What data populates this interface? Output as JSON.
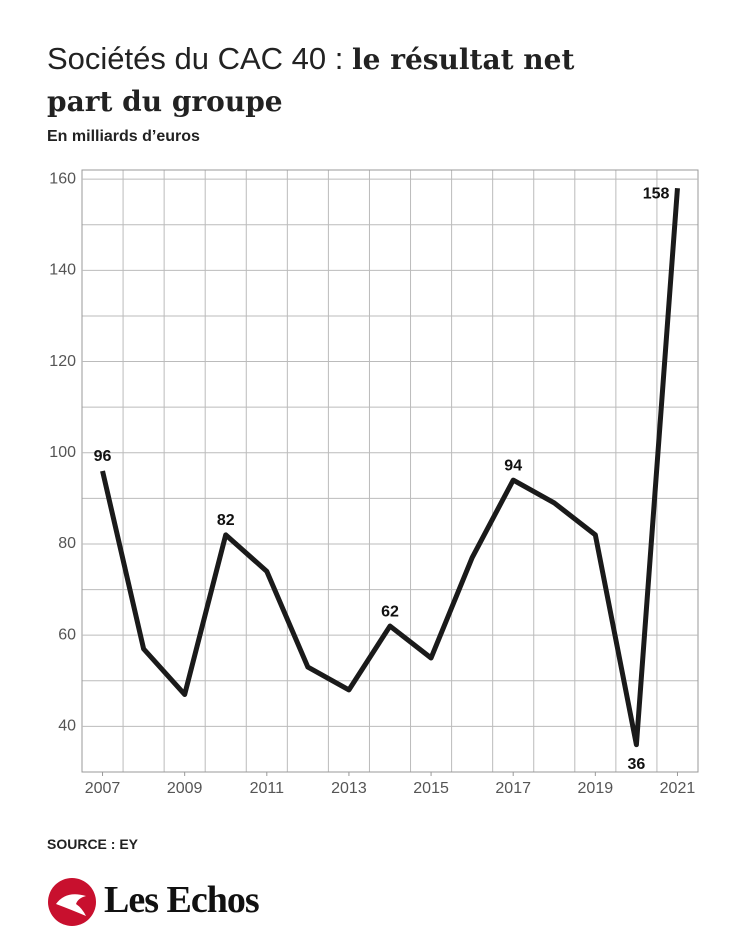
{
  "chart_data": {
    "type": "line",
    "title": {
      "regular": "Sociétés du CAC 40 :",
      "bold": "le résultat net part du groupe"
    },
    "subtitle": "En milliards d’euros",
    "source": "SOURCE : EY",
    "brand": "Les Echos",
    "x": [
      2007,
      2008,
      2009,
      2010,
      2011,
      2012,
      2013,
      2014,
      2015,
      2016,
      2017,
      2018,
      2019,
      2020,
      2021
    ],
    "values": [
      96,
      57,
      47,
      82,
      74,
      53,
      48,
      62,
      55,
      77,
      94,
      89,
      82,
      36,
      158
    ],
    "value_labels": [
      "96",
      null,
      null,
      "82",
      null,
      null,
      null,
      "62",
      null,
      null,
      "94",
      null,
      null,
      "36",
      "158"
    ],
    "color": "#1a1a1a",
    "xlim": [
      2006.5,
      2021.5
    ],
    "xticks": [
      2007,
      2009,
      2011,
      2013,
      2015,
      2017,
      2019,
      2021
    ],
    "ylim": [
      30,
      162
    ],
    "yticks": [
      40,
      60,
      80,
      100,
      120,
      140,
      160
    ],
    "grid": true
  }
}
